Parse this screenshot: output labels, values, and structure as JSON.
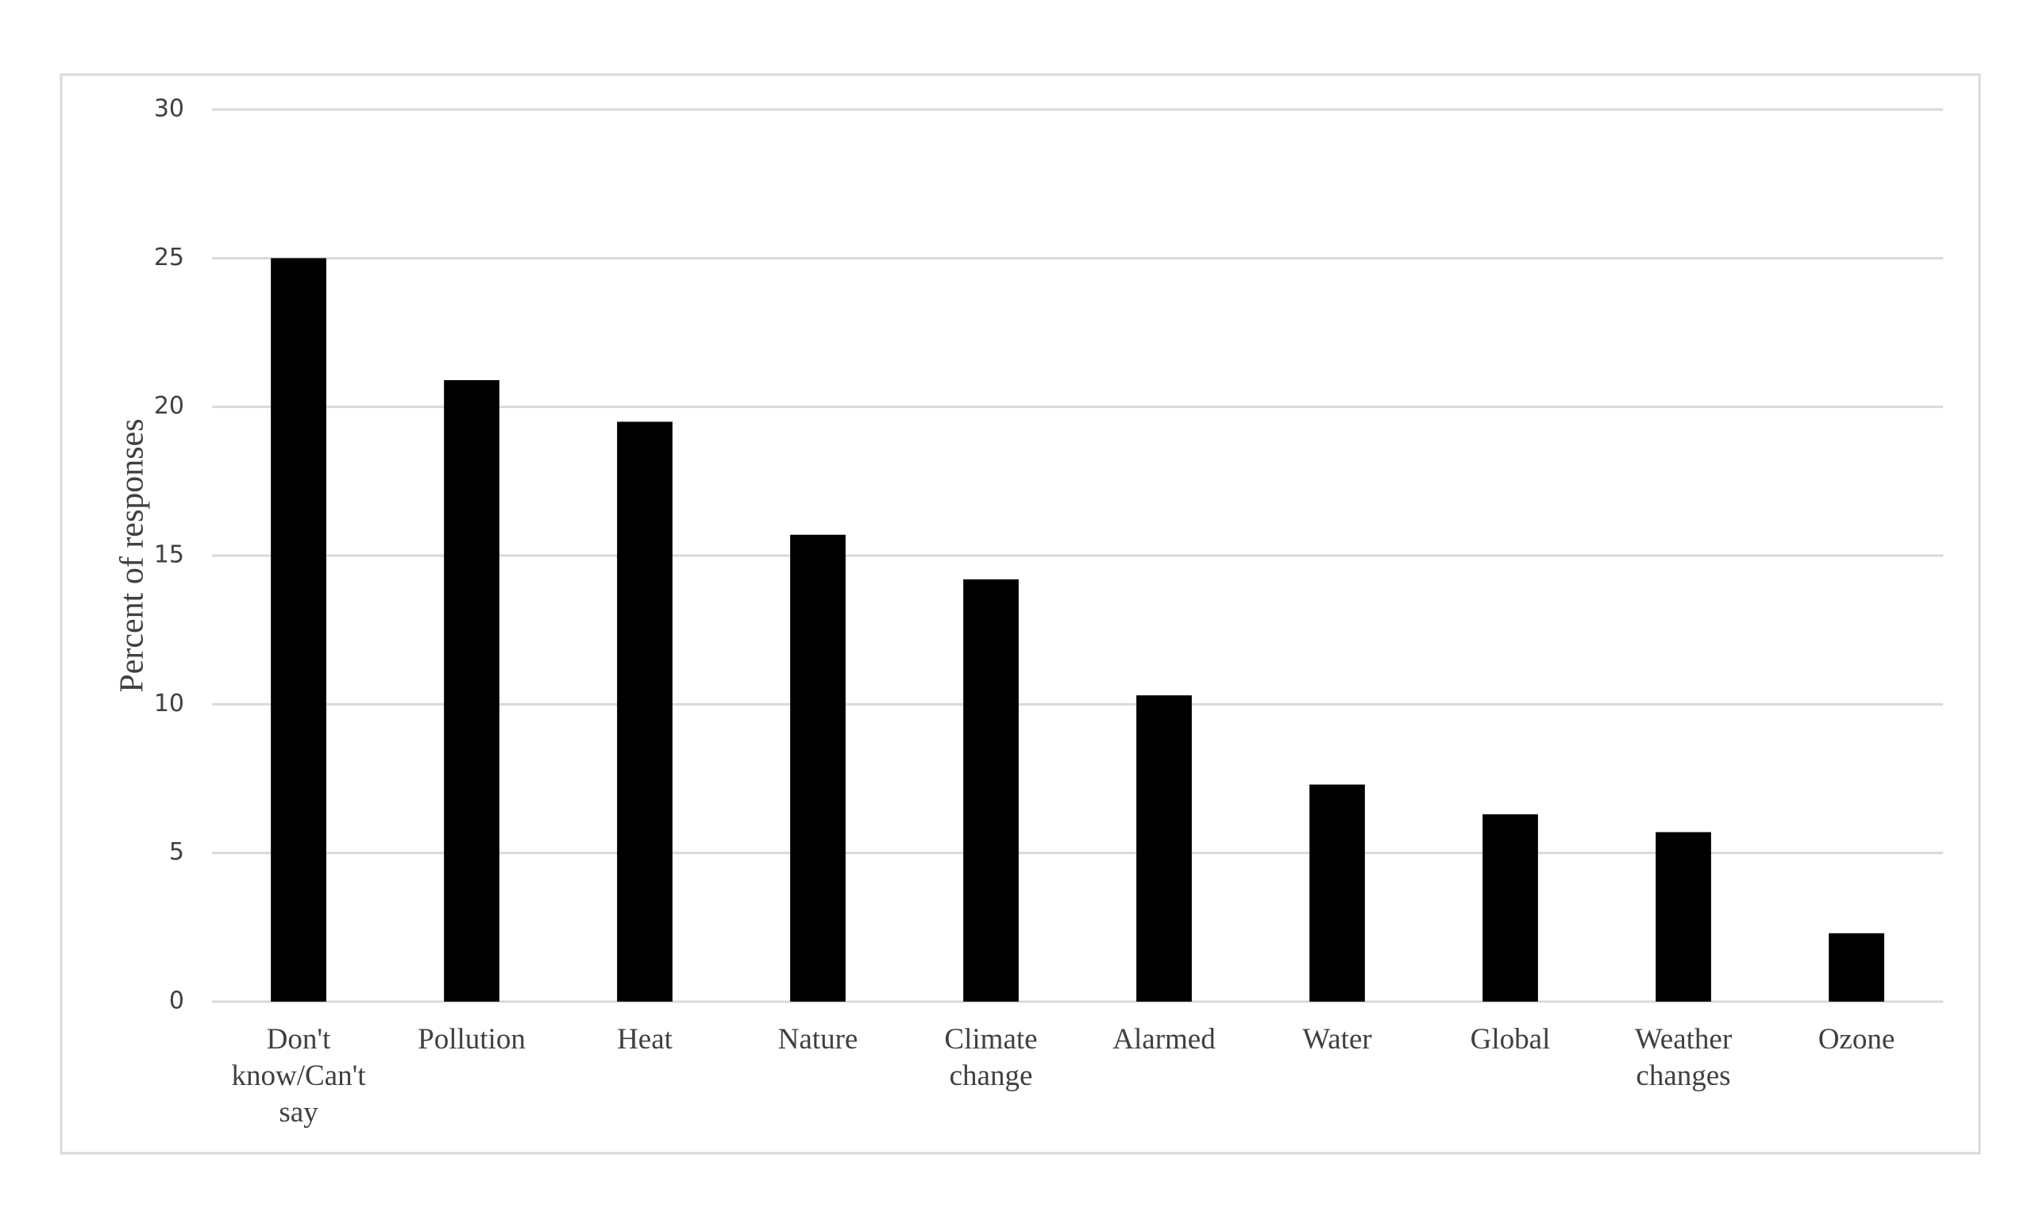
{
  "chart_data": {
    "type": "bar",
    "y_label": "Percent of responses",
    "categories": [
      "Don't know/Can't say",
      "Pollution",
      "Heat",
      "Nature",
      "Climate change",
      "Alarmed",
      "Water",
      "Global",
      "Weather changes",
      "Ozone"
    ],
    "values": [
      25.0,
      20.9,
      19.5,
      15.7,
      14.2,
      10.3,
      7.3,
      6.3,
      5.7,
      2.3
    ],
    "color": "#000000",
    "ylim": [
      0,
      30
    ],
    "yticks": [
      0,
      5,
      10,
      15,
      20,
      25,
      30
    ],
    "grid": true
  }
}
